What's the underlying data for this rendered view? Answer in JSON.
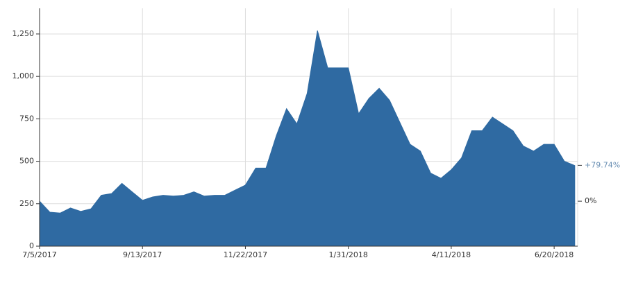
{
  "chart_data": {
    "type": "area",
    "color": "#2f6aa2",
    "grid": true,
    "x": [
      "7/5/2017",
      "7/12/2017",
      "7/19/2017",
      "7/26/2017",
      "8/2/2017",
      "8/9/2017",
      "8/16/2017",
      "8/23/2017",
      "8/30/2017",
      "9/6/2017",
      "9/13/2017",
      "9/20/2017",
      "9/27/2017",
      "10/4/2017",
      "10/11/2017",
      "10/18/2017",
      "10/25/2017",
      "11/1/2017",
      "11/8/2017",
      "11/15/2017",
      "11/22/2017",
      "11/29/2017",
      "12/6/2017",
      "12/13/2017",
      "12/20/2017",
      "12/27/2017",
      "1/3/2018",
      "1/10/2018",
      "1/17/2018",
      "1/24/2018",
      "1/31/2018",
      "2/7/2018",
      "2/14/2018",
      "2/21/2018",
      "2/28/2018",
      "3/7/2018",
      "3/14/2018",
      "3/21/2018",
      "3/28/2018",
      "4/4/2018",
      "4/11/2018",
      "4/18/2018",
      "4/25/2018",
      "5/2/2018",
      "5/9/2018",
      "5/16/2018",
      "5/23/2018",
      "5/30/2018",
      "6/6/2018",
      "6/13/2018",
      "6/20/2018",
      "6/27/2018",
      "7/4/2018"
    ],
    "values": [
      265,
      200,
      195,
      225,
      205,
      220,
      300,
      310,
      370,
      320,
      270,
      290,
      300,
      295,
      300,
      320,
      295,
      300,
      300,
      330,
      360,
      460,
      460,
      650,
      810,
      720,
      900,
      1270,
      1050,
      1050,
      1050,
      780,
      870,
      930,
      860,
      730,
      600,
      560,
      430,
      400,
      450,
      520,
      680,
      680,
      760,
      720,
      680,
      590,
      560,
      600,
      600,
      500,
      475
    ],
    "xlim": [
      "7/5/2017",
      "7/6/2018"
    ],
    "xticks": [
      "7/5/2017",
      "9/13/2017",
      "11/22/2017",
      "1/31/2018",
      "4/11/2018",
      "6/20/2018"
    ],
    "ylim": [
      0,
      1401
    ],
    "yticks": [
      0,
      250,
      500,
      750,
      {
        "value": 1000,
        "label": "1,000"
      },
      {
        "value": 1250,
        "label": "1,250"
      }
    ],
    "y2lim": [
      -100,
      428.7
    ],
    "y2ticks": [
      {
        "value": 0,
        "label": "0%"
      },
      {
        "value": 79.74,
        "label": "+79.74%"
      }
    ]
  }
}
